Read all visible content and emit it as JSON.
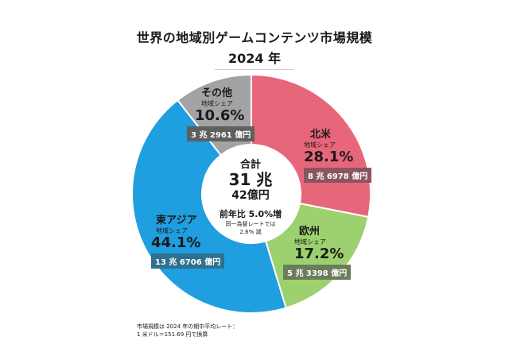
{
  "header": {
    "title": "世界の地域別ゲームコンテンツ市場規模",
    "year": "2024 年"
  },
  "center": {
    "total_label": "合計",
    "total_trillion": "31 兆",
    "total_oku": "42億円",
    "growth": "前年比 5.0%増",
    "note_line1": "同一為替レートでは",
    "note_line2": "2.6% 減"
  },
  "regions": {
    "north_america": {
      "name": "北米",
      "share_label": "地域シェア",
      "share": "28.1%",
      "amount": "8 兆 6978 億円",
      "color": "#e8667a"
    },
    "europe": {
      "name": "欧州",
      "share_label": "地域シェア",
      "share": "17.2%",
      "amount": "5 兆 3398 億円",
      "color": "#9dd16f"
    },
    "east_asia": {
      "name": "東アジア",
      "share_label": "地域シェア",
      "share": "44.1%",
      "amount": "13 兆 6706 億円",
      "color": "#1f9ee0"
    },
    "other": {
      "name": "その他",
      "share_label": "地域シェア",
      "share": "10.6%",
      "amount": "3 兆 2961 億円",
      "color": "#a3a3a3"
    }
  },
  "footnote": {
    "line1": "市場規模は 2024 年の期中平均レート：",
    "line2": "1 米ドル＝151.69 円で換算"
  },
  "chart_data": {
    "type": "pie",
    "title": "世界の地域別ゲームコンテンツ市場規模",
    "subtitle": "2024 年",
    "categories": [
      "北米",
      "欧州",
      "東アジア",
      "その他"
    ],
    "values": [
      28.1,
      17.2,
      44.1,
      10.6
    ],
    "amounts": [
      "8 兆 6978 億円",
      "5 兆 3398 億円",
      "13 兆 6706 億円",
      "3 兆 2961 億円"
    ],
    "colors": [
      "#e8667a",
      "#9dd16f",
      "#1f9ee0",
      "#a3a3a3"
    ],
    "total": "31 兆 42億円"
  }
}
